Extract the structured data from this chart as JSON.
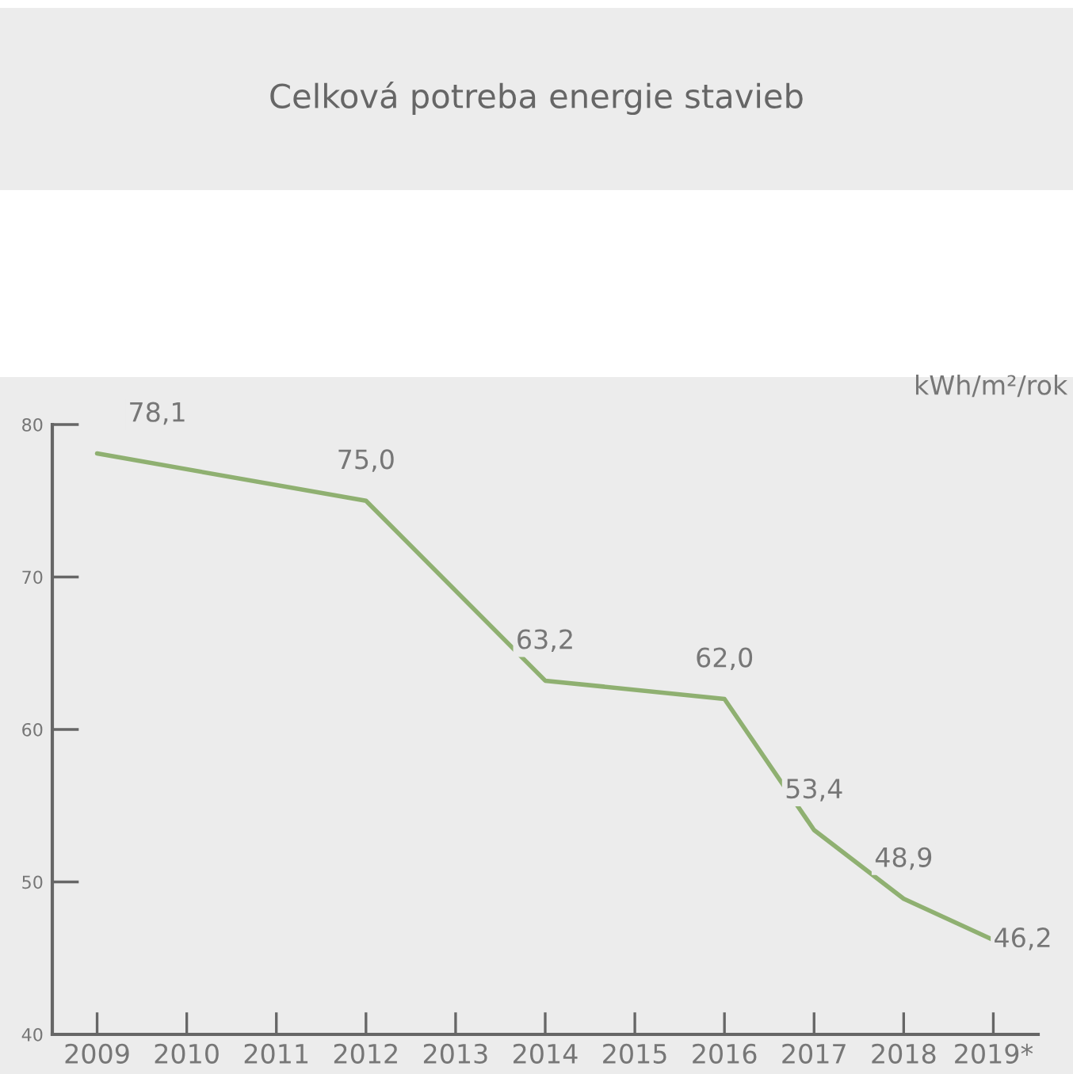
{
  "chart_data": {
    "type": "line",
    "title": "Celková potreba energie stavieb",
    "ylabel": "kWh/m²/rok",
    "x": [
      2009,
      2012,
      2014,
      2016,
      2017,
      2018,
      2019
    ],
    "series": [
      {
        "color": "#8fb071",
        "values": [
          78.1,
          75.0,
          63.2,
          62.0,
          53.4,
          48.9,
          46.2
        ],
        "value_labels": [
          "78,1",
          "75,0",
          "63,2",
          "62,0",
          "53,4",
          "48,9",
          "46,2"
        ]
      }
    ],
    "xlim": [
      2008.5,
      2019.5
    ],
    "xticks": [
      2009,
      2010,
      2011,
      2012,
      2013,
      2014,
      2015,
      2016,
      2017,
      2018,
      {
        "value": 2019,
        "label": "2019*"
      }
    ],
    "ylim": [
      40,
      80
    ],
    "yticks": [
      40,
      50,
      60,
      70,
      80
    ],
    "grid": false,
    "legend": false,
    "marker": "none",
    "line_style": "solid"
  }
}
